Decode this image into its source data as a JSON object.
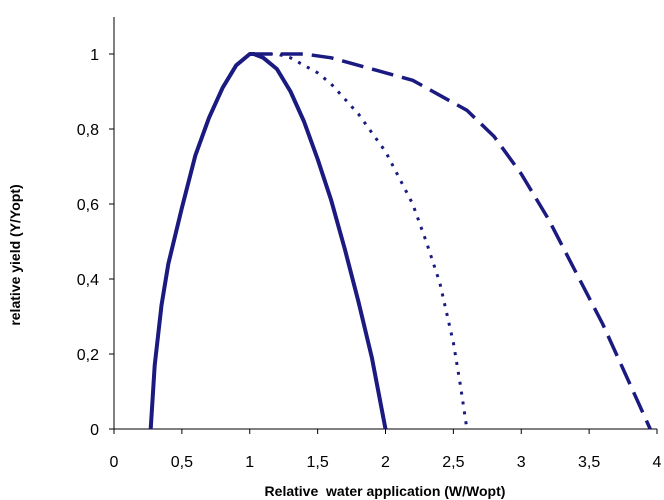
{
  "chart_data": {
    "type": "line",
    "title": "",
    "xlabel": "Relative  water application (W/Wopt)",
    "ylabel": "relative yield (Y/Yopt)",
    "xlim": [
      0,
      4
    ],
    "ylim": [
      0,
      1
    ],
    "x_ticks": [
      "0",
      "0,5",
      "1",
      "1,5",
      "2",
      "2,5",
      "3",
      "3,5",
      "4"
    ],
    "y_ticks": [
      "0",
      "0,2",
      "0,4",
      "0,6",
      "0,8",
      "1"
    ],
    "grid": false,
    "legend": "none",
    "colors": {
      "series": "#1a1a80"
    },
    "series": [
      {
        "style": "solid",
        "x": [
          0.27,
          0.3,
          0.35,
          0.4,
          0.5,
          0.6,
          0.7,
          0.8,
          0.9,
          1.0,
          1.03,
          1.1,
          1.2,
          1.3,
          1.4,
          1.5,
          1.6,
          1.7,
          1.8,
          1.9,
          2.0
        ],
        "y": [
          0.0,
          0.17,
          0.33,
          0.44,
          0.59,
          0.73,
          0.83,
          0.91,
          0.97,
          1.0,
          1.0,
          0.99,
          0.96,
          0.9,
          0.82,
          0.72,
          0.61,
          0.48,
          0.34,
          0.19,
          0.0
        ]
      },
      {
        "style": "dotted",
        "x": [
          1.0,
          1.1,
          1.2,
          1.3,
          1.4,
          1.5,
          1.6,
          1.7,
          1.8,
          1.9,
          2.0,
          2.1,
          2.2,
          2.3,
          2.4,
          2.5,
          2.55,
          2.6
        ],
        "y": [
          1.0,
          1.0,
          1.0,
          0.99,
          0.97,
          0.95,
          0.92,
          0.88,
          0.84,
          0.79,
          0.74,
          0.67,
          0.6,
          0.5,
          0.39,
          0.23,
          0.12,
          0.0
        ]
      },
      {
        "style": "dashed",
        "x": [
          1.0,
          1.2,
          1.4,
          1.6,
          1.8,
          2.0,
          2.2,
          2.4,
          2.6,
          2.8,
          3.0,
          3.2,
          3.4,
          3.6,
          3.8,
          3.95
        ],
        "y": [
          1.0,
          1.0,
          1.0,
          0.99,
          0.97,
          0.95,
          0.93,
          0.89,
          0.85,
          0.78,
          0.68,
          0.56,
          0.42,
          0.28,
          0.12,
          0.0
        ]
      }
    ]
  }
}
